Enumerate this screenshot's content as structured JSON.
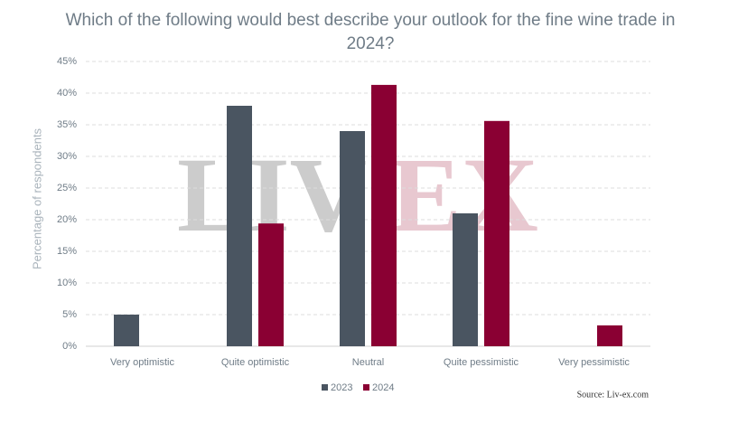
{
  "chart_data": {
    "type": "bar",
    "title": "Which of the following would best describe your outlook for the fine wine trade in 2024?",
    "y_label": "Percentage of respondents",
    "source": "Source: Liv-ex.com",
    "watermark": [
      "LIV",
      "EX"
    ],
    "categories": [
      "Very optimistic",
      "Quite optimistic",
      "Neutral",
      "Quite pessimistic",
      "Very pessimistic"
    ],
    "series": [
      {
        "name": "2023",
        "color": "#4a5561",
        "values": [
          5,
          38,
          34,
          21,
          0
        ]
      },
      {
        "name": "2024",
        "color": "#8a0033",
        "values": [
          0,
          19.4,
          41.3,
          35.6,
          3.3
        ]
      }
    ],
    "ylim": [
      0,
      45
    ],
    "yticks": [
      {
        "value": 0,
        "label": "0%"
      },
      {
        "value": 5,
        "label": "5%"
      },
      {
        "value": 10,
        "label": "10%"
      },
      {
        "value": 15,
        "label": "15%"
      },
      {
        "value": 20,
        "label": "20%"
      },
      {
        "value": 25,
        "label": "25%"
      },
      {
        "value": 30,
        "label": "30%"
      },
      {
        "value": 35,
        "label": "35%"
      },
      {
        "value": 40,
        "label": "40%"
      },
      {
        "value": 45,
        "label": "45%"
      }
    ],
    "grid": true
  }
}
